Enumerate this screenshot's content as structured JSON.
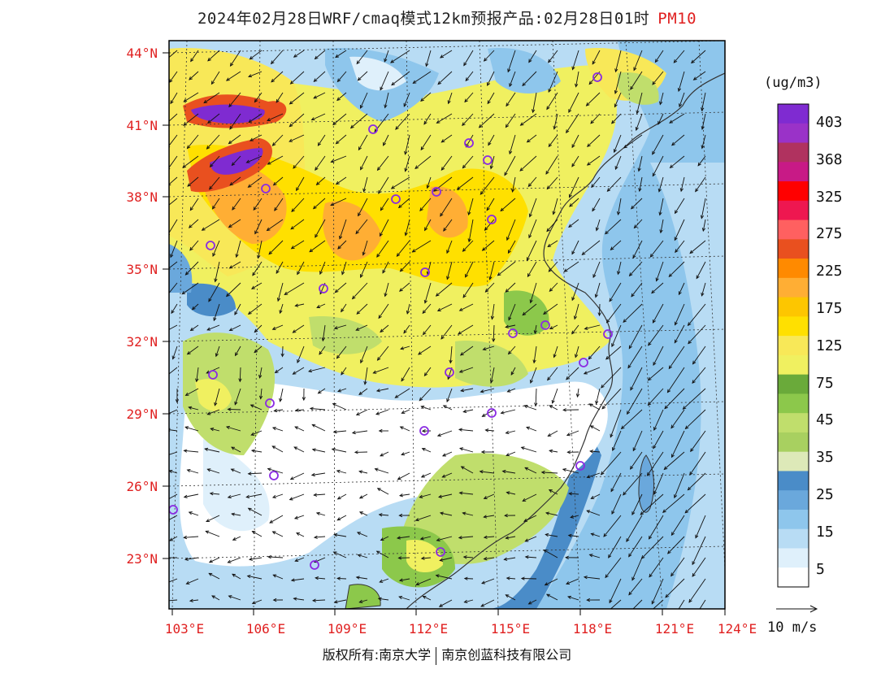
{
  "title": "2024年02月28日WRF/cmaq模式12km预报产品:02月28日01时",
  "pollutant": "PM10",
  "unit": "(ug/m3)",
  "lat_labels": [
    "44°N",
    "41°N",
    "38°N",
    "35°N",
    "32°N",
    "29°N",
    "26°N",
    "23°N"
  ],
  "lon_labels": [
    "103°E",
    "106°E",
    "109°E",
    "112°E",
    "115°E",
    "118°E",
    "121°E",
    "124°E"
  ],
  "colorbar": {
    "labels": [
      "403",
      "368",
      "325",
      "275",
      "225",
      "175",
      "125",
      "75",
      "45",
      "35",
      "25",
      "15",
      "5"
    ],
    "colors": [
      "#7f2bd1",
      "#9a32c8",
      "#b0325f",
      "#c81a86",
      "#ff0000",
      "#ee1750",
      "#ff6060",
      "#e9501f",
      "#ff8a00",
      "#ffae34",
      "#fdc600",
      "#ffe000",
      "#f8e858",
      "#f0f060",
      "#6aaa3a",
      "#8cc84b",
      "#c0de6c",
      "#a8d060",
      "#dde9b8",
      "#4a8cc8",
      "#6aa8dc",
      "#8ec6ec",
      "#b8dcf4",
      "#dff0fb",
      "#ffffff"
    ]
  },
  "vector_scale_label": "10 m/s",
  "copyright": {
    "left": "版权所有:南京大学",
    "right": "南京创蓝科技有限公司"
  }
}
